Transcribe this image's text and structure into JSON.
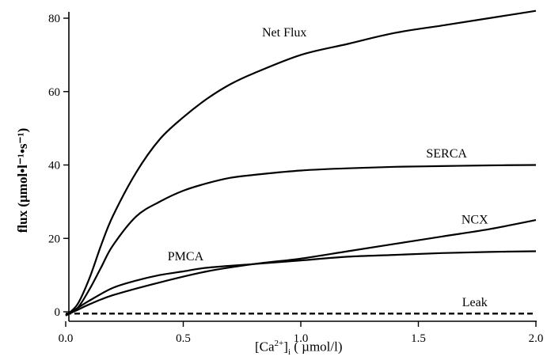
{
  "chart_data": {
    "type": "line",
    "x_ticks": [
      0.0,
      0.5,
      1.0,
      1.5,
      2.0
    ],
    "x_tick_labels": [
      "0.0",
      "0.5",
      "1.0",
      "1.5",
      "2.0"
    ],
    "y_ticks": [
      0,
      20,
      40,
      60,
      80
    ],
    "y_tick_labels": [
      "0",
      "20",
      "40",
      "60",
      "80"
    ],
    "xlim": [
      -0.05,
      2.0
    ],
    "ylim": [
      -3,
      83
    ],
    "xlabel_parts": [
      "[Ca",
      "2+",
      "]",
      "i",
      " ( µmol/l)"
    ],
    "ylabel": "flux (µmol•l⁻¹•s⁻¹)",
    "grid": false,
    "legend": "none",
    "series": [
      {
        "name": "Net Flux",
        "x": [
          0.0,
          0.05,
          0.1,
          0.15,
          0.2,
          0.3,
          0.4,
          0.5,
          0.6,
          0.7,
          0.8,
          1.0,
          1.2,
          1.4,
          1.6,
          1.8,
          2.0
        ],
        "y": [
          -1,
          2,
          9,
          18,
          26,
          38,
          47,
          53,
          58,
          62,
          65,
          70,
          73,
          76,
          78,
          80,
          82
        ],
        "label_x": 0.93,
        "label_y": 75
      },
      {
        "name": "SERCA",
        "x": [
          0.0,
          0.05,
          0.1,
          0.15,
          0.2,
          0.3,
          0.4,
          0.5,
          0.6,
          0.7,
          0.8,
          1.0,
          1.2,
          1.4,
          1.6,
          1.8,
          2.0
        ],
        "y": [
          -1,
          1,
          6,
          12,
          18,
          26,
          30,
          33,
          35,
          36.5,
          37.3,
          38.5,
          39.1,
          39.5,
          39.7,
          39.9,
          40
        ],
        "label_x": 1.62,
        "label_y": 42
      },
      {
        "name": "NCX",
        "x": [
          0.0,
          0.05,
          0.1,
          0.2,
          0.4,
          0.6,
          0.8,
          1.0,
          1.2,
          1.4,
          1.6,
          1.8,
          2.0
        ],
        "y": [
          -1,
          0.5,
          2,
          4.5,
          8,
          11,
          13,
          14.5,
          16.5,
          18.5,
          20.5,
          22.5,
          25
        ],
        "label_x": 1.74,
        "label_y": 24
      },
      {
        "name": "PMCA",
        "x": [
          0.0,
          0.05,
          0.1,
          0.2,
          0.3,
          0.4,
          0.5,
          0.6,
          0.8,
          1.0,
          1.2,
          1.4,
          1.6,
          1.8,
          2.0
        ],
        "y": [
          -1,
          1,
          3,
          6.5,
          8.5,
          10,
          11,
          12,
          13,
          14,
          15,
          15.5,
          16,
          16.3,
          16.5
        ],
        "label_x": 0.51,
        "label_y": 14
      },
      {
        "name": "Leak",
        "dashed": true,
        "x": [
          0.0,
          2.0
        ],
        "y": [
          -0.5,
          -0.5
        ],
        "label_x": 1.74,
        "label_y": 1.5
      }
    ]
  }
}
